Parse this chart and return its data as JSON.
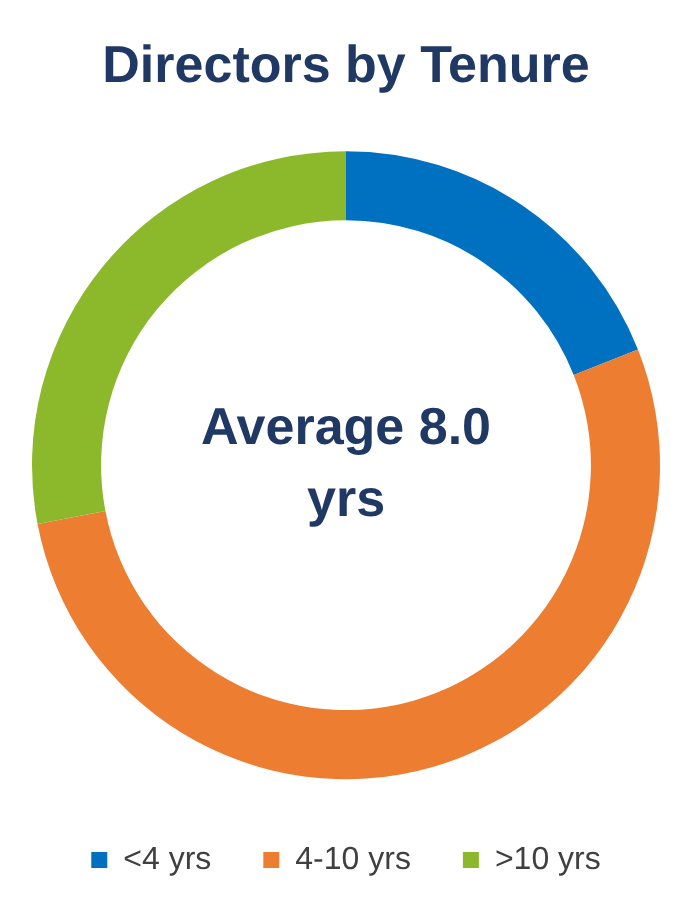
{
  "chart_data": {
    "type": "donut",
    "title": "Directors by Tenure",
    "categories": [
      "<4 yrs",
      "4-10 yrs",
      ">10 yrs"
    ],
    "values": [
      19,
      53,
      28
    ],
    "colors": [
      "#0070c0",
      "#ed7d31",
      "#8cb92b"
    ],
    "annotations": [
      "Average 8.0 yrs"
    ],
    "legend": "bottom"
  }
}
